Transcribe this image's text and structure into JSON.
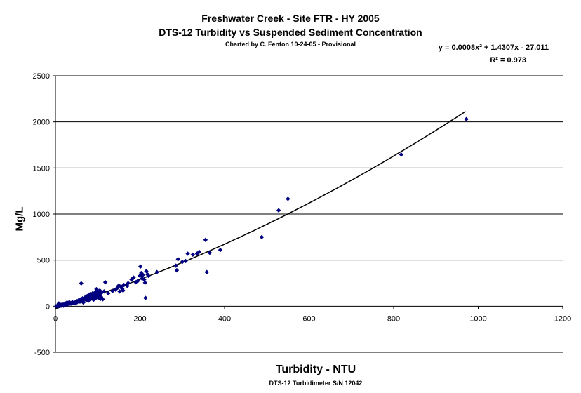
{
  "chart_data": {
    "type": "scatter",
    "title": "Freshwater Creek - Site FTR - HY 2005",
    "title2": "DTS-12 Turbidity vs Suspended Sediment Concentration",
    "subtitle": "Charted by C. Fenton 10-24-05 - Provisional",
    "xlabel": "Turbidity - NTU",
    "xlabel_sub": "DTS-12 Turbidimeter S/N 12042",
    "ylabel": "Mg/L",
    "xlim": [
      0,
      1200
    ],
    "ylim": [
      -500,
      2500
    ],
    "x_ticks": [
      "0",
      "200",
      "400",
      "600",
      "800",
      "1000",
      "1200"
    ],
    "y_ticks": [
      "2500",
      "2000",
      "1500",
      "1000",
      "500",
      "0",
      "-500"
    ],
    "grid": "horizontal",
    "marker_color": "#000080",
    "trendline": {
      "type": "polynomial",
      "coefficients": [
        0.0008,
        1.4307,
        -27.011
      ],
      "x_range": [
        0,
        970
      ],
      "equation_label": "y = 0.0008x² + 1.4307x - 27.011",
      "r2_label": "R² = 0.973"
    },
    "points": [
      [
        2,
        0
      ],
      [
        4,
        2
      ],
      [
        5,
        3
      ],
      [
        6,
        5
      ],
      [
        7,
        -2
      ],
      [
        8,
        10
      ],
      [
        8,
        30
      ],
      [
        9,
        5
      ],
      [
        10,
        8
      ],
      [
        11,
        12
      ],
      [
        12,
        6
      ],
      [
        13,
        14
      ],
      [
        14,
        10
      ],
      [
        15,
        5
      ],
      [
        16,
        20
      ],
      [
        18,
        12
      ],
      [
        19,
        6
      ],
      [
        20,
        18
      ],
      [
        21,
        25
      ],
      [
        22,
        12
      ],
      [
        24,
        30
      ],
      [
        25,
        15
      ],
      [
        26,
        35
      ],
      [
        28,
        20
      ],
      [
        30,
        38
      ],
      [
        32,
        22
      ],
      [
        34,
        40
      ],
      [
        36,
        30
      ],
      [
        38,
        28
      ],
      [
        40,
        45
      ],
      [
        42,
        35
      ],
      [
        45,
        40
      ],
      [
        48,
        32
      ],
      [
        50,
        55
      ],
      [
        52,
        45
      ],
      [
        55,
        65
      ],
      [
        58,
        50
      ],
      [
        60,
        75
      ],
      [
        61,
        248
      ],
      [
        62,
        60
      ],
      [
        64,
        85
      ],
      [
        65,
        55
      ],
      [
        66,
        40
      ],
      [
        68,
        80
      ],
      [
        70,
        95
      ],
      [
        72,
        70
      ],
      [
        74,
        65
      ],
      [
        75,
        110
      ],
      [
        76,
        90
      ],
      [
        78,
        60
      ],
      [
        80,
        100
      ],
      [
        82,
        130
      ],
      [
        84,
        80
      ],
      [
        86,
        120
      ],
      [
        88,
        140
      ],
      [
        89,
        85
      ],
      [
        90,
        70
      ],
      [
        92,
        95
      ],
      [
        93,
        110
      ],
      [
        94,
        150
      ],
      [
        95,
        125
      ],
      [
        96,
        90
      ],
      [
        97,
        185
      ],
      [
        98,
        175
      ],
      [
        99,
        100
      ],
      [
        100,
        130
      ],
      [
        101,
        160
      ],
      [
        102,
        110
      ],
      [
        103,
        90
      ],
      [
        104,
        140
      ],
      [
        105,
        170
      ],
      [
        106,
        120
      ],
      [
        107,
        80
      ],
      [
        108,
        100
      ],
      [
        110,
        150
      ],
      [
        112,
        75
      ],
      [
        115,
        160
      ],
      [
        118,
        260
      ],
      [
        125,
        140
      ],
      [
        135,
        165
      ],
      [
        142,
        180
      ],
      [
        147,
        200
      ],
      [
        150,
        225
      ],
      [
        152,
        160
      ],
      [
        155,
        215
      ],
      [
        158,
        190
      ],
      [
        160,
        170
      ],
      [
        162,
        230
      ],
      [
        170,
        220
      ],
      [
        172,
        250
      ],
      [
        180,
        290
      ],
      [
        185,
        310
      ],
      [
        190,
        260
      ],
      [
        195,
        275
      ],
      [
        200,
        330
      ],
      [
        201,
        430
      ],
      [
        203,
        360
      ],
      [
        205,
        300
      ],
      [
        207,
        340
      ],
      [
        210,
        290
      ],
      [
        212,
        255
      ],
      [
        213,
        90
      ],
      [
        215,
        380
      ],
      [
        218,
        345
      ],
      [
        220,
        330
      ],
      [
        240,
        370
      ],
      [
        285,
        440
      ],
      [
        287,
        390
      ],
      [
        290,
        510
      ],
      [
        300,
        480
      ],
      [
        308,
        490
      ],
      [
        313,
        570
      ],
      [
        325,
        560
      ],
      [
        335,
        570
      ],
      [
        340,
        590
      ],
      [
        355,
        720
      ],
      [
        358,
        370
      ],
      [
        365,
        580
      ],
      [
        390,
        610
      ],
      [
        488,
        750
      ],
      [
        528,
        1040
      ],
      [
        550,
        1165
      ],
      [
        818,
        1645
      ],
      [
        972,
        2030
      ]
    ]
  }
}
